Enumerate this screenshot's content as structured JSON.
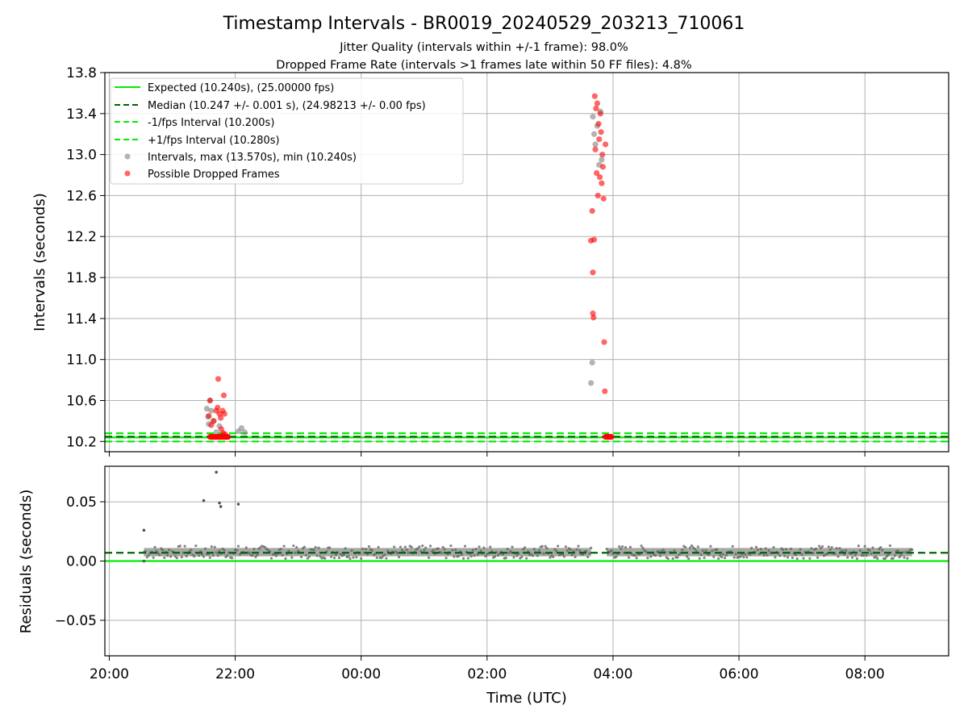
{
  "chart_data": [
    {
      "type": "scatter",
      "title": "Timestamp Intervals - BR0019_20240529_203213_710061",
      "subtitle_1": "Jitter Quality (intervals within +/-1 frame): 98.0%",
      "subtitle_2": "Dropped Frame Rate (intervals >1 frames late within 50 FF files): 4.8%",
      "ylabel": "Intervals (seconds)",
      "ylim": [
        10.1,
        13.8
      ],
      "yticks": [
        "10.2",
        "10.6",
        "11.0",
        "11.4",
        "11.8",
        "12.2",
        "12.6",
        "13.0",
        "13.4",
        "13.8"
      ],
      "grid": true,
      "legend_position": "top-left",
      "reference_lines": [
        {
          "name": "Expected (10.240s), (25.00000 fps)",
          "value": 10.24,
          "color": "#00ee00",
          "style": "solid"
        },
        {
          "name": "Median (10.247 +/- 0.001 s), (24.98213 +/- 0.00 fps)",
          "value": 10.247,
          "color": "#006400",
          "style": "dashed"
        },
        {
          "name": "-1/fps Interval (10.200s)",
          "value": 10.2,
          "color": "#00ee00",
          "style": "dashed"
        },
        {
          "name": "+1/fps Interval (10.280s)",
          "value": 10.28,
          "color": "#00ee00",
          "style": "dashed"
        }
      ],
      "series": [
        {
          "name": "Intervals, max (13.570s), min (10.240s)",
          "color": "#808080",
          "points": [
            [
              21.55,
              10.52
            ],
            [
              21.57,
              10.44
            ],
            [
              21.58,
              10.37
            ],
            [
              21.6,
              10.6
            ],
            [
              21.62,
              10.5
            ],
            [
              21.65,
              10.4
            ],
            [
              21.7,
              10.29
            ],
            [
              21.75,
              10.35
            ],
            [
              22.05,
              10.3
            ],
            [
              22.1,
              10.33
            ],
            [
              22.15,
              10.29
            ],
            [
              27.65,
              10.77
            ],
            [
              27.67,
              10.97
            ],
            [
              27.68,
              13.37
            ],
            [
              27.7,
              13.2
            ],
            [
              27.72,
              13.1
            ],
            [
              27.75,
              13.28
            ],
            [
              27.78,
              12.9
            ],
            [
              27.8,
              13.42
            ],
            [
              27.82,
              12.95
            ]
          ]
        },
        {
          "name": "Possible Dropped Frames",
          "color": "#ff0000",
          "points": [
            [
              21.58,
              10.45
            ],
            [
              21.6,
              10.6
            ],
            [
              21.62,
              10.36
            ],
            [
              21.66,
              10.4
            ],
            [
              21.7,
              10.5
            ],
            [
              21.72,
              10.53
            ],
            [
              21.73,
              10.81
            ],
            [
              21.75,
              10.47
            ],
            [
              21.77,
              10.43
            ],
            [
              21.78,
              10.32
            ],
            [
              21.8,
              10.5
            ],
            [
              21.81,
              10.28
            ],
            [
              21.82,
              10.65
            ],
            [
              21.83,
              10.47
            ],
            [
              21.84,
              10.27
            ],
            [
              27.65,
              12.16
            ],
            [
              27.67,
              12.45
            ],
            [
              27.68,
              11.85
            ],
            [
              27.68,
              11.45
            ],
            [
              27.69,
              11.41
            ],
            [
              27.7,
              12.17
            ],
            [
              27.71,
              13.57
            ],
            [
              27.72,
              13.05
            ],
            [
              27.73,
              13.45
            ],
            [
              27.74,
              12.82
            ],
            [
              27.75,
              13.5
            ],
            [
              27.76,
              12.6
            ],
            [
              27.77,
              13.3
            ],
            [
              27.78,
              13.15
            ],
            [
              27.79,
              12.78
            ],
            [
              27.8,
              13.4
            ],
            [
              27.81,
              13.22
            ],
            [
              27.82,
              12.72
            ],
            [
              27.83,
              13.0
            ],
            [
              27.84,
              12.88
            ],
            [
              27.85,
              12.57
            ],
            [
              27.86,
              11.17
            ],
            [
              27.87,
              10.69
            ],
            [
              27.88,
              13.1
            ]
          ]
        }
      ]
    },
    {
      "type": "scatter",
      "title": "",
      "xlabel": "Time (UTC)",
      "ylabel": "Residuals (seconds)",
      "ylim": [
        -0.08,
        0.08
      ],
      "yticks": [
        "0.05",
        "0.00",
        "−0.05"
      ],
      "xlim": [
        19.93,
        33.33
      ],
      "xticks": [
        "20:00",
        "22:00",
        "00:00",
        "02:00",
        "04:00",
        "06:00",
        "08:00"
      ],
      "grid": true,
      "reference_lines": [
        {
          "value": 0.0,
          "color": "#00ee00",
          "style": "solid"
        },
        {
          "value": 0.007,
          "color": "#006400",
          "style": "dashed"
        }
      ],
      "points": [
        [
          20.55,
          0.026
        ],
        [
          20.55,
          0.0
        ],
        [
          21.5,
          0.051
        ],
        [
          21.7,
          0.075
        ],
        [
          21.75,
          0.049
        ],
        [
          21.77,
          0.046
        ],
        [
          22.05,
          0.048
        ]
      ],
      "coverage_ranges": [
        [
          20.55,
          27.65
        ],
        [
          27.9,
          32.75
        ]
      ],
      "residual_band": [
        0.002,
        0.013
      ]
    }
  ]
}
